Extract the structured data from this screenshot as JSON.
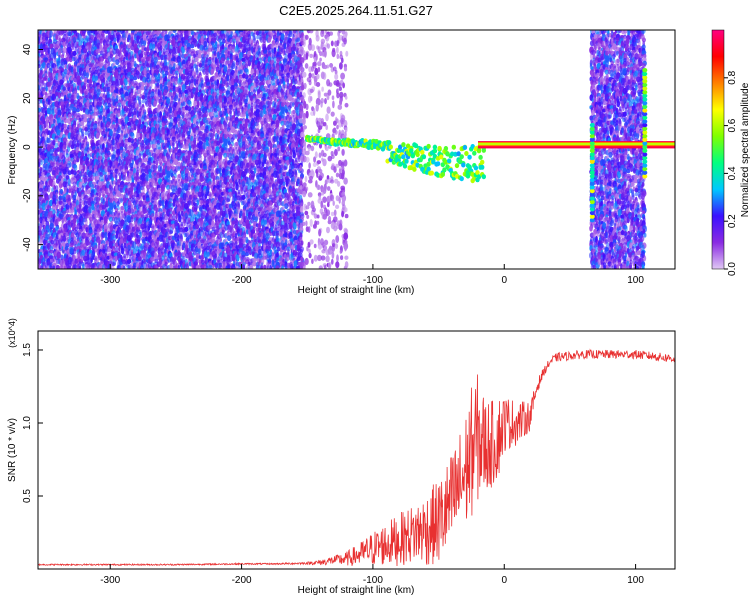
{
  "title": "C2E5.2025.264.11.51.G27",
  "chart_data": [
    {
      "type": "heatmap",
      "xlabel": "Height of straight line (km)",
      "ylabel": "Frequency (Hz)",
      "xlim": [
        -355,
        130
      ],
      "ylim": [
        -50,
        48
      ],
      "xticks": [
        -300,
        -200,
        -100,
        0,
        100
      ],
      "yticks": [
        -40,
        -20,
        0,
        20,
        40
      ],
      "colorbar": {
        "label": "Normalized spectral amplitude",
        "range": [
          0,
          1
        ],
        "ticks": [
          0.0,
          0.2,
          0.4,
          0.6,
          0.8
        ],
        "colors": [
          "#e0c8f4",
          "#8a2be2",
          "#3a10ff",
          "#00c8ff",
          "#00ff80",
          "#80ff00",
          "#ffff00",
          "#ff8000",
          "#ff0000",
          "#ff0080"
        ]
      },
      "regions": [
        {
          "x": [
            -355,
            -155
          ],
          "y": [
            -50,
            48
          ],
          "amplitude": [
            0.05,
            0.3
          ]
        },
        {
          "x": [
            -155,
            -120
          ],
          "y": [
            -50,
            48
          ],
          "amplitude": [
            0.02,
            0.12
          ]
        },
        {
          "x": [
            66,
            106
          ],
          "y": [
            -50,
            48
          ],
          "amplitude": [
            0.05,
            0.3
          ]
        }
      ],
      "ridge": [
        {
          "x": -150,
          "y": 4
        },
        {
          "x": -130,
          "y": 3
        },
        {
          "x": -110,
          "y": 3
        },
        {
          "x": -90,
          "y": 2
        },
        {
          "x": -70,
          "y": 1
        },
        {
          "x": -50,
          "y": 0
        },
        {
          "x": -30,
          "y": 0
        },
        {
          "x": -10,
          "y": 1
        },
        {
          "x": 60,
          "y": 0
        },
        {
          "x": 110,
          "y": 0
        },
        {
          "x": 130,
          "y": 0
        }
      ],
      "ridge_amplitude": [
        0.35,
        0.95
      ],
      "spikes": [
        {
          "x": 67,
          "y": [
            -30,
            10
          ]
        },
        {
          "x": 107,
          "y": [
            -12,
            32
          ]
        }
      ]
    },
    {
      "type": "line",
      "xlabel": "Height of straight line (km)",
      "ylabel": "SNR (10 * v/v)",
      "scale_label": "(x10^4)",
      "xlim": [
        -355,
        130
      ],
      "ylim": [
        0,
        1.63
      ],
      "xticks": [
        -300,
        -200,
        -100,
        0,
        100
      ],
      "yticks": [
        0.5,
        1.0,
        1.5
      ],
      "series": [
        {
          "color": "#e83030",
          "x": [
            -355,
            -300,
            -250,
            -200,
            -175,
            -150,
            -140,
            -130,
            -120,
            -110,
            -100,
            -90,
            -80,
            -70,
            -60,
            -50,
            -40,
            -30,
            -25,
            -20,
            -15,
            -10,
            -5,
            0,
            10,
            20,
            25,
            30,
            35,
            40,
            60,
            80,
            100,
            120,
            130
          ],
          "y": [
            0.03,
            0.03,
            0.03,
            0.035,
            0.035,
            0.04,
            0.045,
            0.06,
            0.07,
            0.1,
            0.14,
            0.17,
            0.2,
            0.24,
            0.27,
            0.32,
            0.45,
            0.65,
            0.8,
            0.9,
            0.85,
            0.85,
            0.9,
            1.0,
            1.0,
            1.05,
            1.25,
            1.35,
            1.42,
            1.45,
            1.47,
            1.47,
            1.47,
            1.45,
            1.44
          ],
          "noise": [
            0.005,
            0.005,
            0.005,
            0.005,
            0.005,
            0.008,
            0.02,
            0.03,
            0.05,
            0.08,
            0.12,
            0.15,
            0.18,
            0.2,
            0.25,
            0.3,
            0.35,
            0.4,
            0.45,
            0.45,
            0.35,
            0.3,
            0.3,
            0.2,
            0.15,
            0.1,
            0.05,
            0.03,
            0.03,
            0.03,
            0.03,
            0.03,
            0.03,
            0.03,
            0.03
          ]
        }
      ]
    }
  ]
}
